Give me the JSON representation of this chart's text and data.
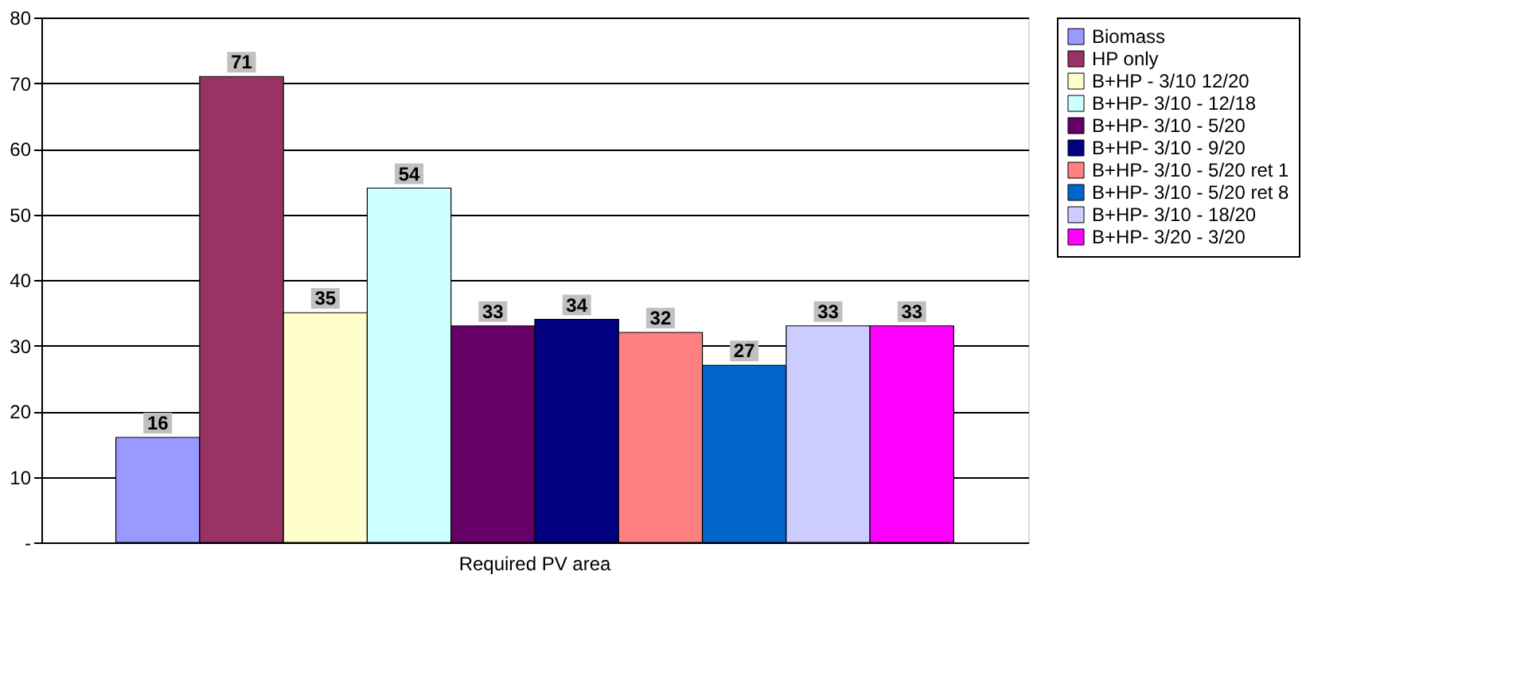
{
  "chart_data": {
    "type": "bar",
    "categories": [
      "Required PV area"
    ],
    "series": [
      {
        "name": "Biomass",
        "color": "#9999ff",
        "values": [
          16
        ]
      },
      {
        "name": "HP only",
        "color": "#993366",
        "values": [
          71
        ]
      },
      {
        "name": "B+HP - 3/10 12/20",
        "color": "#ffffcc",
        "values": [
          35
        ]
      },
      {
        "name": "B+HP- 3/10 - 12/18",
        "color": "#ccffff",
        "values": [
          54
        ]
      },
      {
        "name": "B+HP- 3/10 - 5/20",
        "color": "#660066",
        "values": [
          33
        ]
      },
      {
        "name": "B+HP- 3/10 - 9/20",
        "color": "#000080",
        "values": [
          34
        ]
      },
      {
        "name": "B+HP- 3/10 - 5/20 ret 1",
        "color": "#ff8080",
        "values": [
          32
        ]
      },
      {
        "name": "B+HP- 3/10 - 5/20 ret 8",
        "color": "#0066cc",
        "values": [
          27
        ]
      },
      {
        "name": "B+HP- 3/10 - 18/20",
        "color": "#ccccff",
        "values": [
          33
        ]
      },
      {
        "name": "B+HP- 3/20 - 3/20",
        "color": "#ff00ff",
        "values": [
          33
        ]
      }
    ],
    "ylim": [
      0,
      80
    ],
    "yticks": [
      {
        "value": 0,
        "label": "-"
      },
      10,
      20,
      30,
      40,
      50,
      60,
      70,
      80
    ],
    "grid": "y",
    "legend": "right",
    "data_labels": true
  }
}
